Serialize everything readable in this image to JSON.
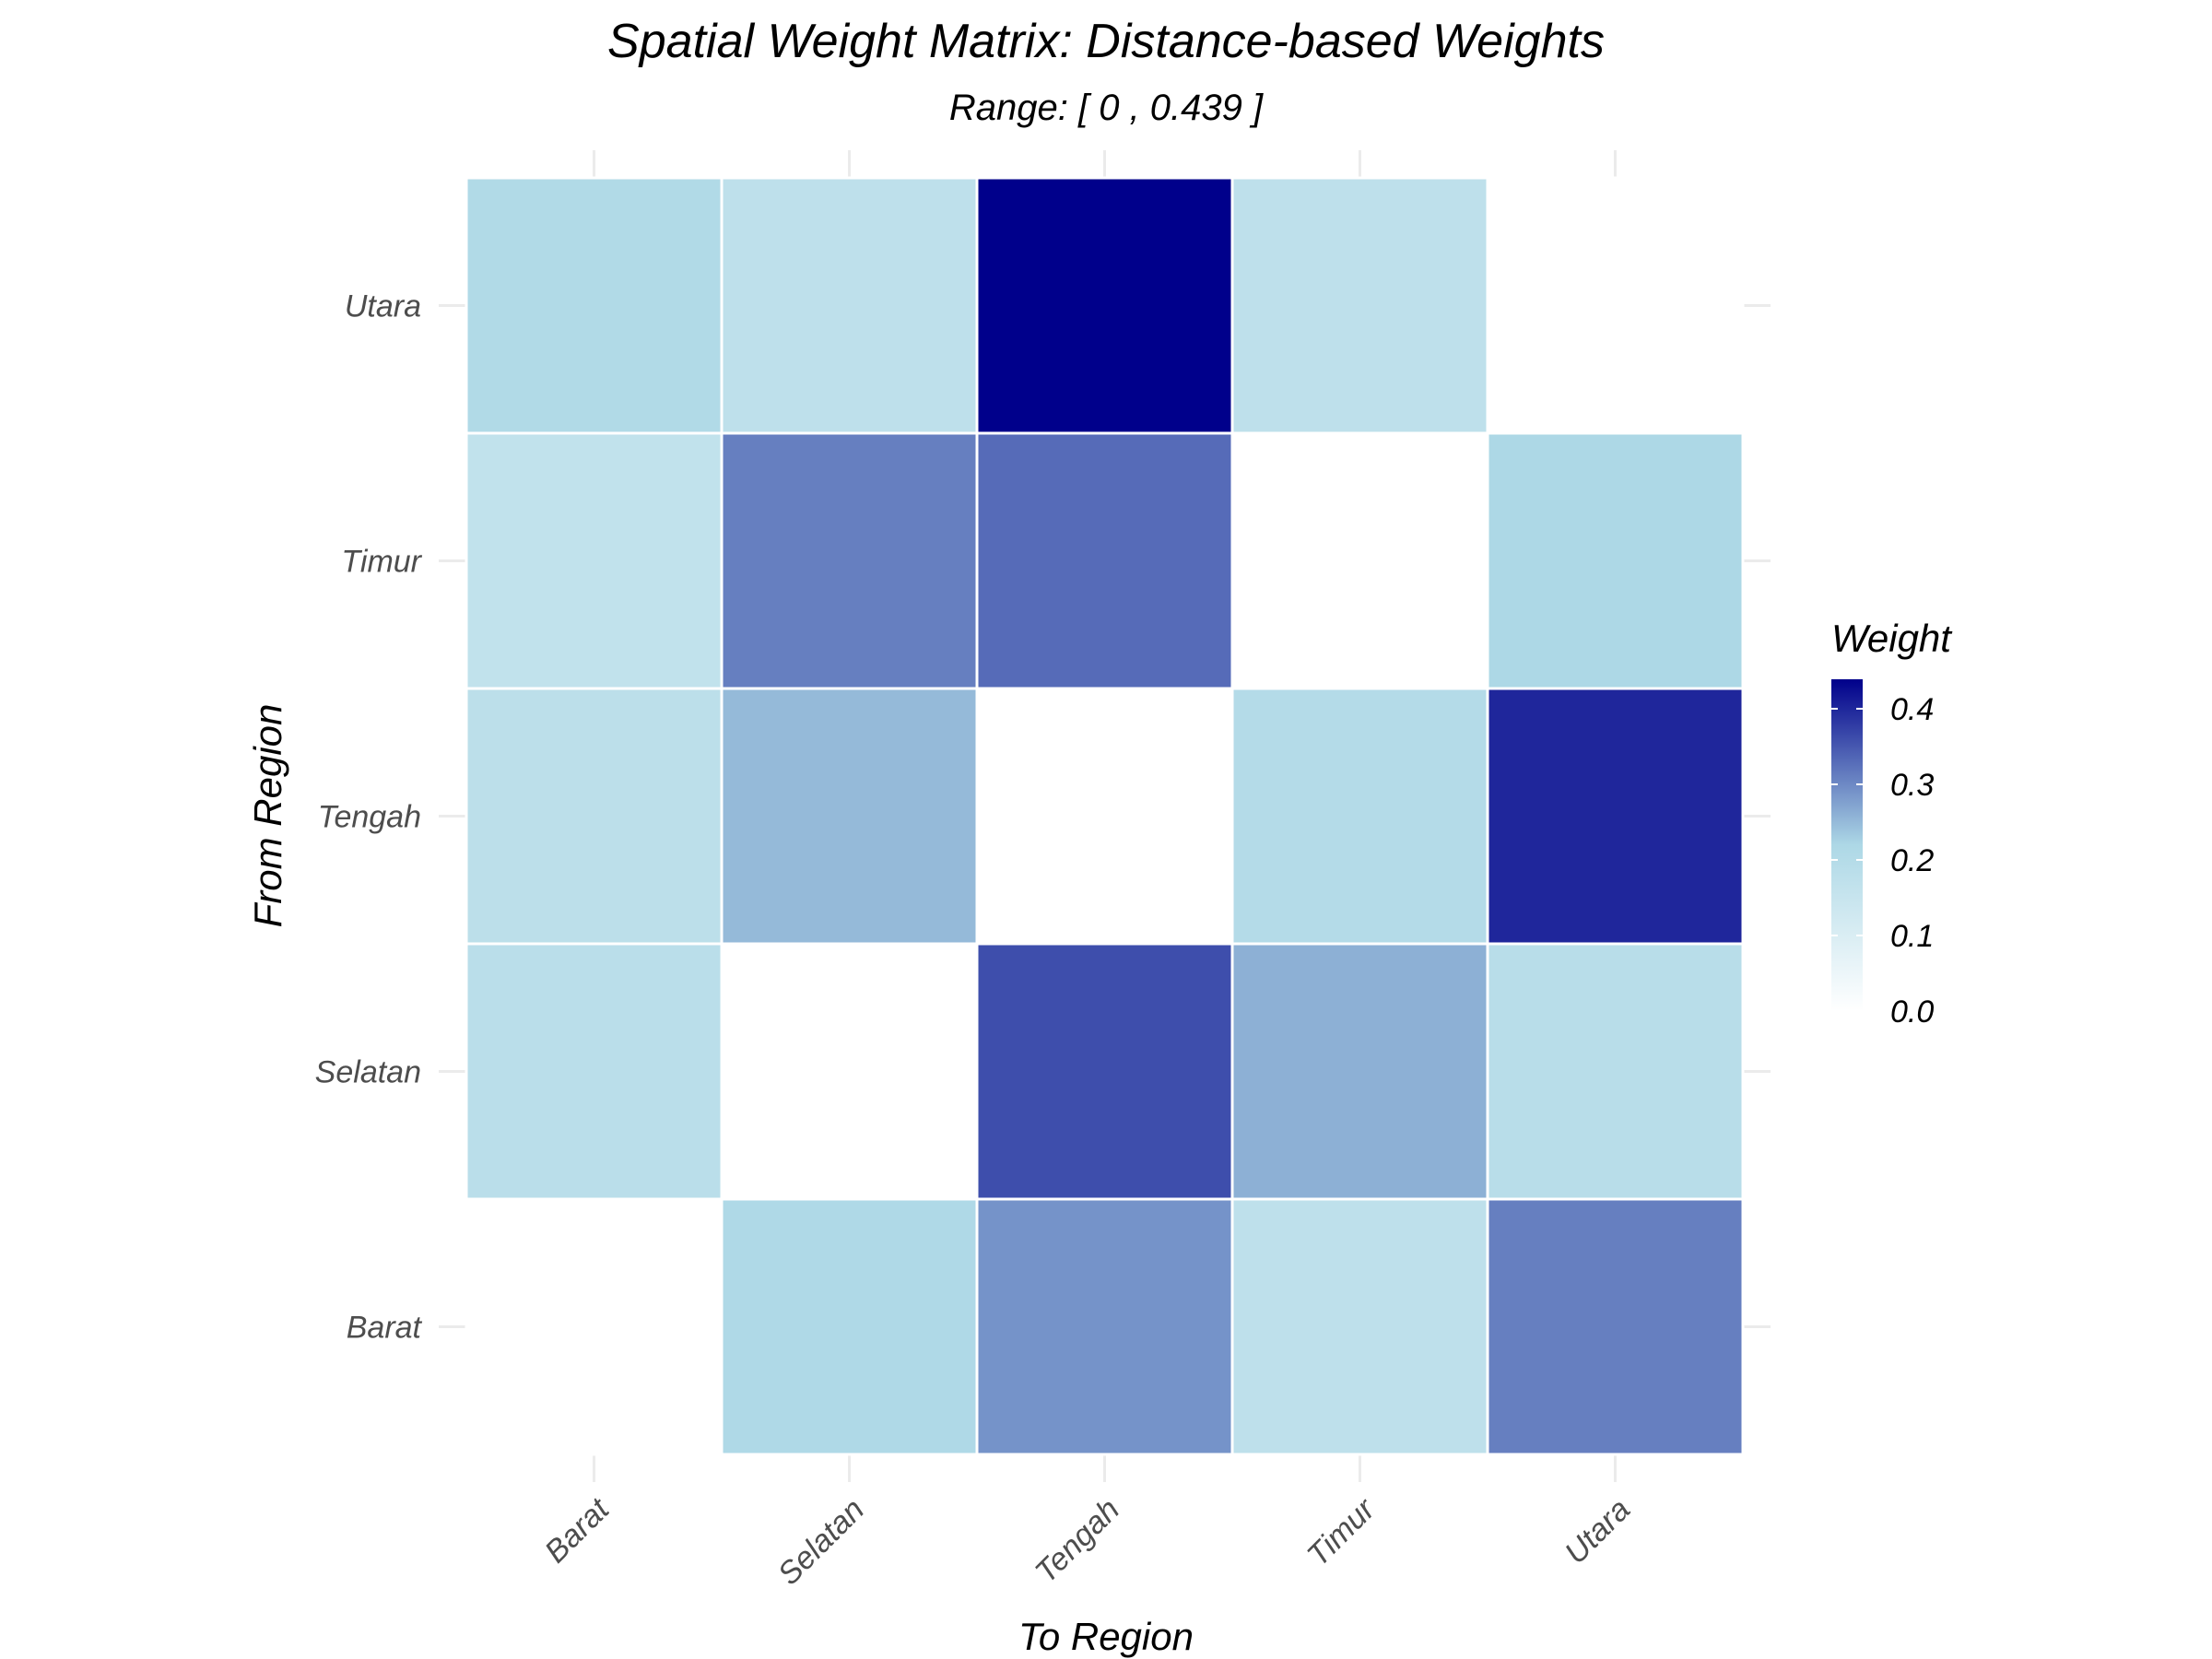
{
  "chart_data": {
    "type": "heatmap",
    "title": "Spatial Weight Matrix: Distance-based Weights",
    "subtitle": "Range: [ 0 , 0.439 ]",
    "xlabel": "To Region",
    "ylabel": "From Region",
    "x_categories": [
      "Barat",
      "Selatan",
      "Tengah",
      "Timur",
      "Utara"
    ],
    "y_categories": [
      "Barat",
      "Selatan",
      "Tengah",
      "Timur",
      "Utara"
    ],
    "values": [
      [
        0.0,
        0.215,
        0.29,
        0.175,
        0.31
      ],
      [
        0.185,
        0.0,
        0.36,
        0.26,
        0.19
      ],
      [
        0.18,
        0.25,
        0.0,
        0.2,
        0.4
      ],
      [
        0.165,
        0.31,
        0.33,
        0.0,
        0.22
      ],
      [
        0.21,
        0.175,
        0.439,
        0.175,
        0.0
      ]
    ],
    "legend": {
      "title": "Weight",
      "ticks": [
        0.4,
        0.3,
        0.2,
        0.1,
        0.0
      ],
      "tick_labels": [
        "0.4",
        "0.3",
        "0.2",
        "0.1",
        "0.0"
      ],
      "range": [
        0,
        0.439
      ]
    },
    "colors": {
      "low": "#ffffff",
      "mid": "#add8e6",
      "high": "#00008b",
      "midpoint": 0.2195,
      "grid": "#ebebeb",
      "tile_border": "#ffffff"
    }
  }
}
